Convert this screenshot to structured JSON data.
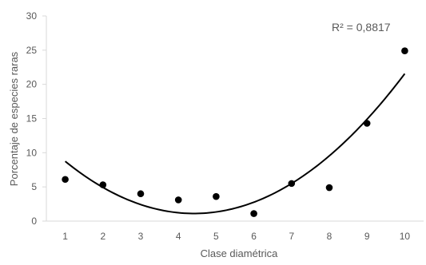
{
  "chart_data": {
    "type": "scatter",
    "title": "",
    "xlabel": "Clase diamétrica",
    "ylabel": "Porcentaje de especies raras",
    "x_ticks": [
      "1",
      "2",
      "3",
      "4",
      "5",
      "6",
      "7",
      "8",
      "9",
      "10"
    ],
    "y_ticks": [
      "0",
      "5",
      "10",
      "15",
      "20",
      "25",
      "30"
    ],
    "xlim": [
      0.5,
      10.5
    ],
    "ylim": [
      0,
      30
    ],
    "grid": false,
    "annotation": "R² = 0,8817",
    "points": {
      "x": [
        1,
        2,
        3,
        4,
        5,
        6,
        7,
        8,
        9,
        10
      ],
      "y": [
        6.1,
        5.3,
        4.0,
        3.1,
        3.6,
        1.1,
        5.5,
        4.9,
        14.3,
        24.9
      ]
    },
    "trendline": {
      "kind": "polynomial-2",
      "x": [
        1,
        2,
        3,
        4,
        5,
        6,
        7,
        8,
        9,
        10
      ],
      "y": [
        8.5,
        5.1,
        2.6,
        1.3,
        1.4,
        2.6,
        5.3,
        9.5,
        15.0,
        21.6
      ]
    },
    "colors": {
      "points": "#000000",
      "trendline": "#000000",
      "axis": "#d9d9d9",
      "text": "#595959"
    }
  }
}
